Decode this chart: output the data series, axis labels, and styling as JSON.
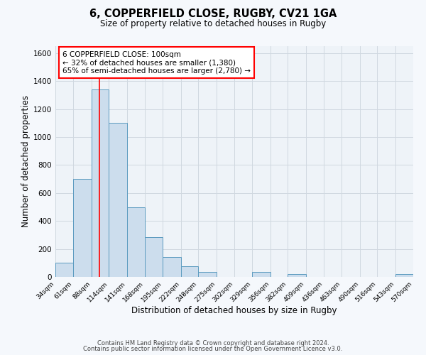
{
  "title": "6, COPPERFIELD CLOSE, RUGBY, CV21 1GA",
  "subtitle": "Size of property relative to detached houses in Rugby",
  "xlabel": "Distribution of detached houses by size in Rugby",
  "ylabel": "Number of detached properties",
  "bar_color": "#ccdded",
  "bar_edge_color": "#5a9abf",
  "background_color": "#f5f8fc",
  "plot_bg_color": "#eef3f8",
  "grid_color": "#d0d8e0",
  "red_line_x": 100,
  "annotation_box": {
    "text_line1": "6 COPPERFIELD CLOSE: 100sqm",
    "text_line2": "← 32% of detached houses are smaller (1,380)",
    "text_line3": "65% of semi-detached houses are larger (2,780) →"
  },
  "bins": [
    34,
    61,
    88,
    114,
    141,
    168,
    195,
    222,
    248,
    275,
    302,
    329,
    356,
    382,
    409,
    436,
    463,
    490,
    516,
    543,
    570
  ],
  "counts": [
    100,
    700,
    1340,
    1100,
    500,
    285,
    140,
    75,
    35,
    0,
    0,
    35,
    0,
    20,
    0,
    0,
    0,
    0,
    0,
    20
  ],
  "ylim": [
    0,
    1650
  ],
  "yticks": [
    0,
    200,
    400,
    600,
    800,
    1000,
    1200,
    1400,
    1600
  ],
  "footer_line1": "Contains HM Land Registry data © Crown copyright and database right 2024.",
  "footer_line2": "Contains public sector information licensed under the Open Government Licence v3.0."
}
